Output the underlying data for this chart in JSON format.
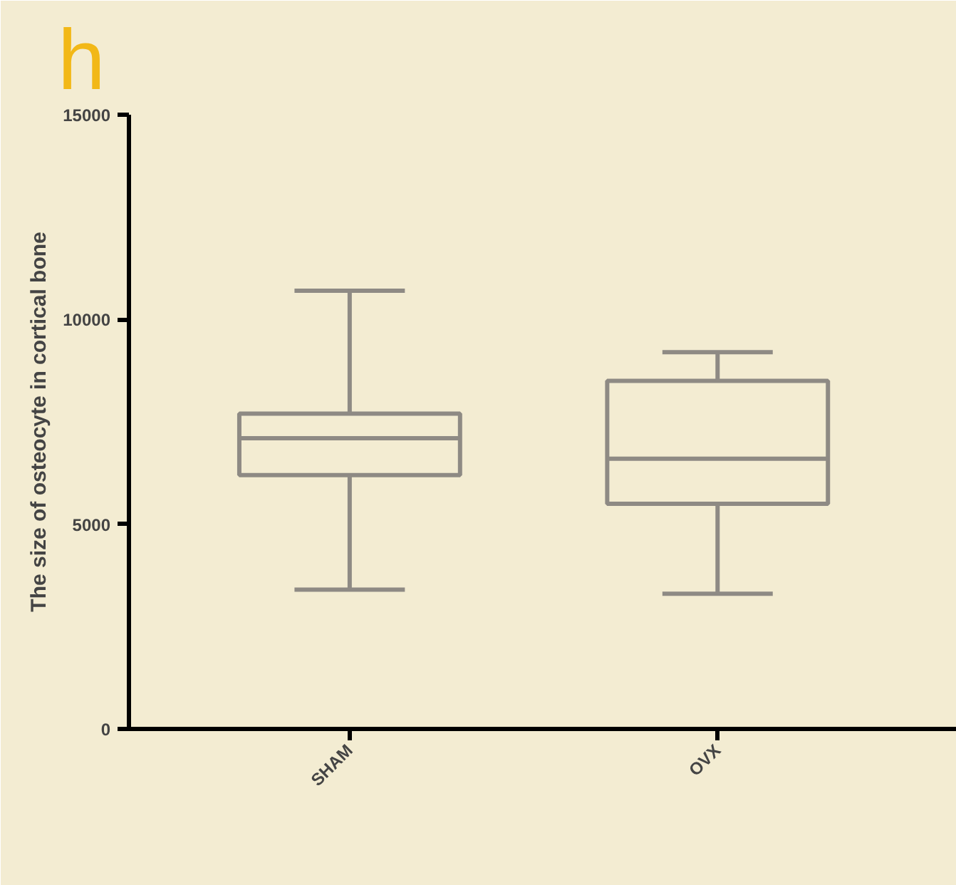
{
  "chart_data": {
    "type": "box",
    "title": "h",
    "ylabel": "The size of osteocyte in cortical bone",
    "categories": [
      "SHAM",
      "OVX"
    ],
    "boxes": [
      {
        "low": 3400,
        "q1": 6200,
        "median": 7100,
        "q3": 7700,
        "high": 10700
      },
      {
        "low": 3300,
        "q1": 5500,
        "median": 6600,
        "q3": 8500,
        "high": 9200
      }
    ],
    "color": "#8e8a84",
    "ylim": [
      0,
      15000
    ],
    "yticks": [
      0,
      5000,
      10000,
      15000
    ],
    "grid": false
  }
}
